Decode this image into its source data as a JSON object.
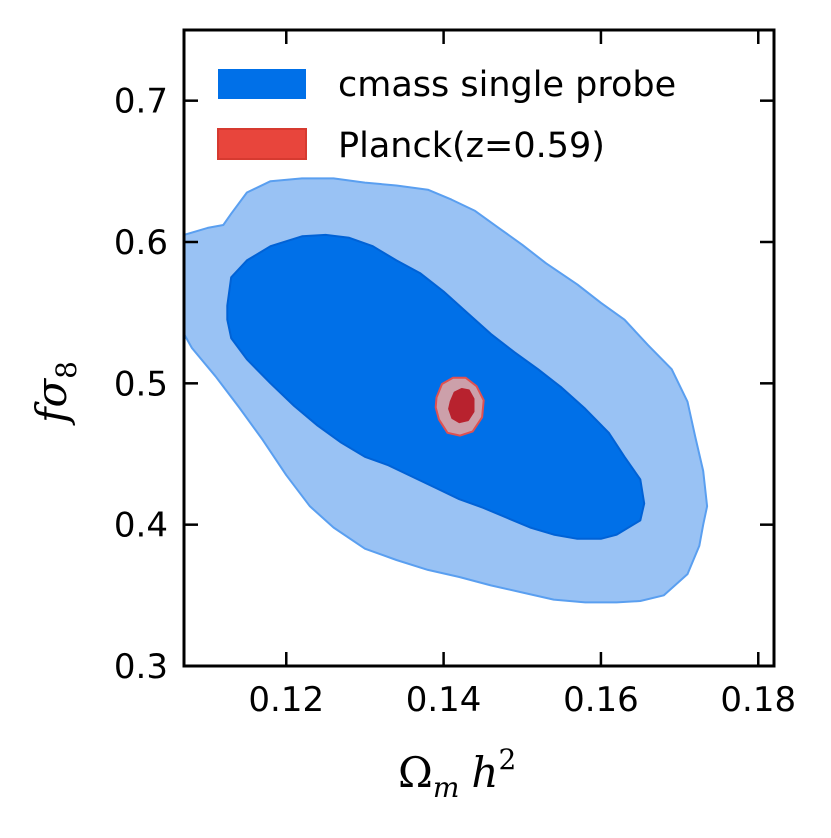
{
  "chart_data": {
    "type": "contour",
    "xlabel": "Ω_m h^2",
    "xlabel_main": "Ω",
    "xlabel_sub": "m",
    "xlabel_var": "h",
    "xlabel_sup": "2",
    "ylabel": "fσ_8",
    "ylabel_main": "fσ",
    "ylabel_sub": "8",
    "xlim": [
      0.107,
      0.182
    ],
    "ylim": [
      0.3,
      0.75
    ],
    "xticks": [
      0.12,
      0.14,
      0.16,
      0.18
    ],
    "xtick_labels": [
      "0.12",
      "0.14",
      "0.16",
      "0.18"
    ],
    "yticks": [
      0.3,
      0.4,
      0.5,
      0.6,
      0.7
    ],
    "ytick_labels": [
      "0.3",
      "0.4",
      "0.5",
      "0.6",
      "0.7"
    ],
    "legend_position": "top-left",
    "legend": [
      {
        "label": "cmass single probe",
        "color": "#0070e8"
      },
      {
        "label": "Planck(z=0.59)",
        "color": "#e8453c"
      }
    ],
    "series": [
      {
        "name": "cmass single probe",
        "level": "95%",
        "fill": "#99c2f4",
        "stroke": "#5a9ff0",
        "points": [
          [
            0.107,
            0.605
          ],
          [
            0.11,
            0.61
          ],
          [
            0.112,
            0.612
          ],
          [
            0.113,
            0.62
          ],
          [
            0.115,
            0.635
          ],
          [
            0.118,
            0.643
          ],
          [
            0.122,
            0.645
          ],
          [
            0.126,
            0.645
          ],
          [
            0.13,
            0.642
          ],
          [
            0.134,
            0.64
          ],
          [
            0.138,
            0.637
          ],
          [
            0.141,
            0.63
          ],
          [
            0.144,
            0.622
          ],
          [
            0.147,
            0.61
          ],
          [
            0.15,
            0.598
          ],
          [
            0.153,
            0.585
          ],
          [
            0.157,
            0.57
          ],
          [
            0.16,
            0.557
          ],
          [
            0.163,
            0.545
          ],
          [
            0.166,
            0.527
          ],
          [
            0.169,
            0.51
          ],
          [
            0.171,
            0.487
          ],
          [
            0.172,
            0.462
          ],
          [
            0.173,
            0.438
          ],
          [
            0.1735,
            0.413
          ],
          [
            0.173,
            0.4
          ],
          [
            0.1725,
            0.385
          ],
          [
            0.171,
            0.365
          ],
          [
            0.168,
            0.35
          ],
          [
            0.165,
            0.346
          ],
          [
            0.162,
            0.345
          ],
          [
            0.158,
            0.345
          ],
          [
            0.154,
            0.347
          ],
          [
            0.15,
            0.352
          ],
          [
            0.146,
            0.357
          ],
          [
            0.142,
            0.363
          ],
          [
            0.138,
            0.368
          ],
          [
            0.134,
            0.375
          ],
          [
            0.13,
            0.383
          ],
          [
            0.126,
            0.398
          ],
          [
            0.123,
            0.413
          ],
          [
            0.12,
            0.435
          ],
          [
            0.117,
            0.46
          ],
          [
            0.114,
            0.483
          ],
          [
            0.111,
            0.505
          ],
          [
            0.108,
            0.525
          ],
          [
            0.107,
            0.535
          ]
        ]
      },
      {
        "name": "cmass single probe",
        "level": "68%",
        "fill": "#0070e8",
        "stroke": "#0062d6",
        "points": [
          [
            0.1125,
            0.555
          ],
          [
            0.113,
            0.575
          ],
          [
            0.115,
            0.587
          ],
          [
            0.118,
            0.597
          ],
          [
            0.122,
            0.604
          ],
          [
            0.125,
            0.605
          ],
          [
            0.128,
            0.603
          ],
          [
            0.131,
            0.597
          ],
          [
            0.134,
            0.587
          ],
          [
            0.137,
            0.578
          ],
          [
            0.14,
            0.565
          ],
          [
            0.143,
            0.55
          ],
          [
            0.146,
            0.535
          ],
          [
            0.149,
            0.522
          ],
          [
            0.152,
            0.51
          ],
          [
            0.155,
            0.497
          ],
          [
            0.158,
            0.482
          ],
          [
            0.161,
            0.465
          ],
          [
            0.163,
            0.448
          ],
          [
            0.165,
            0.432
          ],
          [
            0.1655,
            0.415
          ],
          [
            0.165,
            0.403
          ],
          [
            0.162,
            0.393
          ],
          [
            0.16,
            0.39
          ],
          [
            0.157,
            0.39
          ],
          [
            0.154,
            0.393
          ],
          [
            0.151,
            0.398
          ],
          [
            0.148,
            0.405
          ],
          [
            0.145,
            0.412
          ],
          [
            0.142,
            0.418
          ],
          [
            0.139,
            0.426
          ],
          [
            0.136,
            0.434
          ],
          [
            0.133,
            0.442
          ],
          [
            0.13,
            0.448
          ],
          [
            0.127,
            0.458
          ],
          [
            0.124,
            0.47
          ],
          [
            0.121,
            0.484
          ],
          [
            0.118,
            0.5
          ],
          [
            0.115,
            0.517
          ],
          [
            0.113,
            0.532
          ],
          [
            0.1125,
            0.545
          ]
        ]
      },
      {
        "name": "Planck(z=0.59)",
        "level": "95%",
        "fill": "#cca0aa",
        "stroke": "#e05050",
        "points": [
          [
            0.1391,
            0.49
          ],
          [
            0.1398,
            0.4995
          ],
          [
            0.1412,
            0.504
          ],
          [
            0.1428,
            0.504
          ],
          [
            0.1442,
            0.498
          ],
          [
            0.1451,
            0.488
          ],
          [
            0.1449,
            0.476
          ],
          [
            0.1437,
            0.466
          ],
          [
            0.1421,
            0.463
          ],
          [
            0.1405,
            0.465
          ],
          [
            0.1394,
            0.4745
          ],
          [
            0.139,
            0.483
          ]
        ]
      },
      {
        "name": "Planck(z=0.59)",
        "level": "68%",
        "fill": "#b8222e",
        "stroke": "#b8222e",
        "points": [
          [
            0.1409,
            0.487
          ],
          [
            0.1414,
            0.4935
          ],
          [
            0.1423,
            0.496
          ],
          [
            0.1432,
            0.495
          ],
          [
            0.1438,
            0.489
          ],
          [
            0.1438,
            0.48
          ],
          [
            0.1431,
            0.474
          ],
          [
            0.142,
            0.4725
          ],
          [
            0.1411,
            0.4755
          ],
          [
            0.1407,
            0.482
          ]
        ]
      }
    ]
  }
}
